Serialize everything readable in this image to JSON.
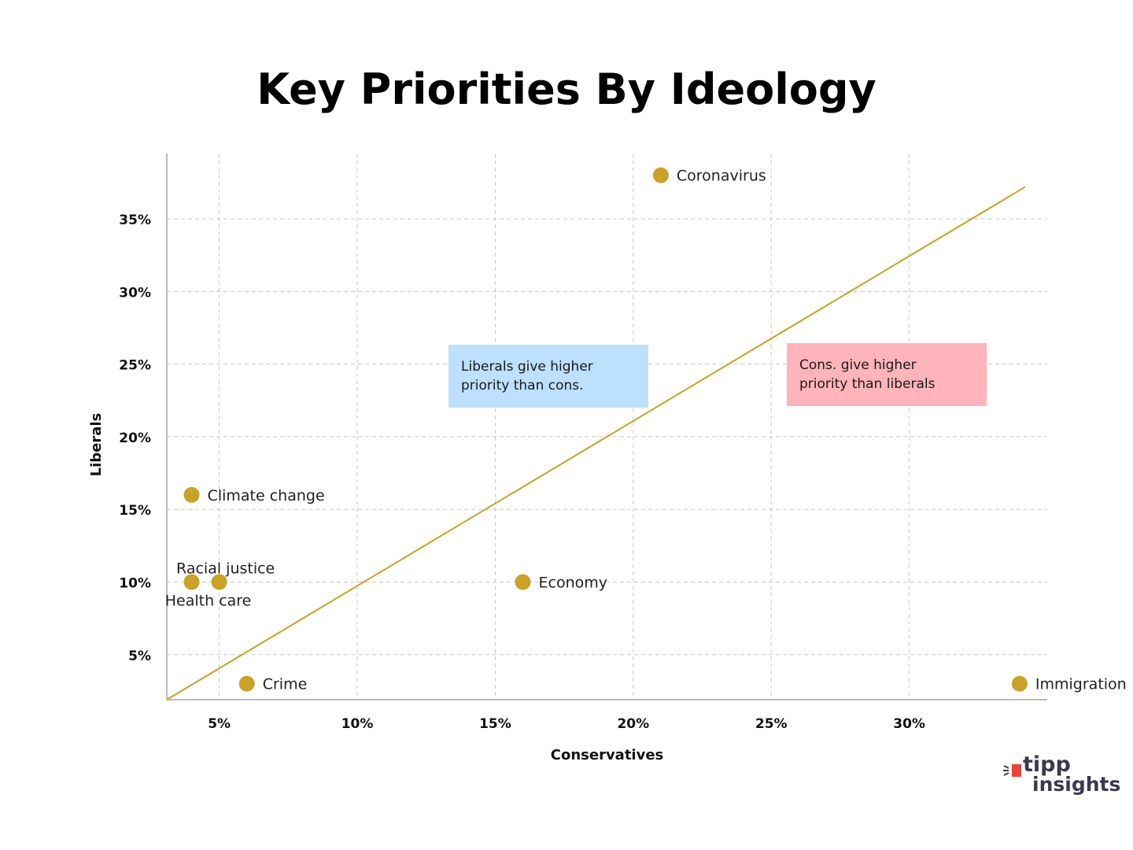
{
  "colors": {
    "point": "#c9a227",
    "trend_line": "#c9a227",
    "liberal_box": "#bde0fe",
    "conservative_box": "#ffb3ba",
    "grid": "#c8c8c8",
    "brand_text": "#3b3950",
    "brand_accent": "#e8443a"
  },
  "annotations": {
    "liberals": [
      "Liberals give higher",
      "priority than cons."
    ],
    "conservatives": [
      "Cons. give higher",
      "priority than liberals"
    ]
  },
  "brand": {
    "line1": "tipp",
    "line2": "insights",
    "icon": "megaphone-icon"
  },
  "chart_data": {
    "type": "scatter",
    "title": "Key Priorities By Ideology",
    "xlabel": "Conservatives",
    "ylabel": "Liberals",
    "xlim": [
      3.1,
      35
    ],
    "ylim": [
      1.9,
      39.5
    ],
    "x_ticks": [
      5,
      10,
      15,
      20,
      25,
      30
    ],
    "y_ticks": [
      5,
      10,
      15,
      20,
      25,
      30,
      35
    ],
    "tick_format": "{v}%",
    "grid": true,
    "points": [
      {
        "label": "Coronavirus",
        "x": 21,
        "y": 38,
        "label_pos": "right"
      },
      {
        "label": "Climate change",
        "x": 4,
        "y": 16,
        "label_pos": "right"
      },
      {
        "label": "Racial justice",
        "x": 5,
        "y": 10,
        "label_pos": "above"
      },
      {
        "label": "Health care",
        "x": 4,
        "y": 10,
        "label_pos": "below"
      },
      {
        "label": "Economy",
        "x": 16,
        "y": 10,
        "label_pos": "right"
      },
      {
        "label": "Crime",
        "x": 6,
        "y": 3,
        "label_pos": "right"
      },
      {
        "label": "Immigration",
        "x": 34,
        "y": 3,
        "label_pos": "right"
      }
    ],
    "trend_line": {
      "x": [
        3.1,
        34.2
      ],
      "y": [
        1.9,
        37.2
      ]
    }
  }
}
